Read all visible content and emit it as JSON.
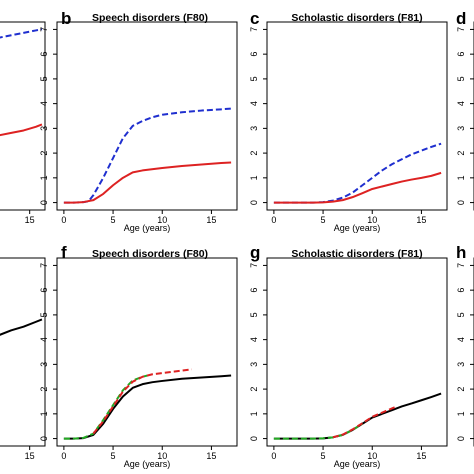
{
  "figure": {
    "panels": [
      {
        "id": "a-partial",
        "letter": "",
        "title": ""
      },
      {
        "id": "b",
        "letter": "b",
        "title": "Speech disorders (F80)"
      },
      {
        "id": "c",
        "letter": "c",
        "title": "Scholastic disorders (F81)"
      },
      {
        "id": "d",
        "letter": "d",
        "title": ""
      },
      {
        "id": "e-partial",
        "letter": "",
        "title": ""
      },
      {
        "id": "f",
        "letter": "f",
        "title": "Speech disorders (F80)"
      },
      {
        "id": "g",
        "letter": "g",
        "title": "Scholastic disorders (F81)"
      },
      {
        "id": "h",
        "letter": "h",
        "title": ""
      }
    ]
  },
  "chart_data": [
    {
      "panel": "a-partial",
      "type": "line",
      "title": "",
      "xlabel": "",
      "ylabel": "",
      "xlim": [
        8.2,
        17.5
      ],
      "ylim": [
        -0.3,
        7.5
      ],
      "xticks": [
        15
      ],
      "yticks": [],
      "series": [
        {
          "color": "#1f2fcf",
          "style": "dashed",
          "x": [
            8.2,
            10,
            12,
            14,
            16,
            17
          ],
          "y": [
            6.75,
            6.85,
            6.95,
            7.05,
            7.15,
            7.2
          ]
        },
        {
          "color": "#dd2222",
          "style": "solid",
          "x": [
            8.2,
            10,
            12,
            14,
            16,
            17
          ],
          "y": [
            2.7,
            2.8,
            2.9,
            3.0,
            3.15,
            3.25
          ]
        }
      ]
    },
    {
      "panel": "b",
      "type": "line",
      "title": "Speech disorders (F80)",
      "xlabel": "Age (years)",
      "ylabel": "",
      "xlim": [
        -0.7,
        17.6
      ],
      "ylim": [
        -0.3,
        7.3
      ],
      "xticks": [
        0,
        5,
        10,
        15
      ],
      "yticks": [
        0,
        1,
        2,
        3,
        4,
        5,
        6,
        7
      ],
      "series": [
        {
          "color": "#1f2fcf",
          "style": "dashed",
          "x": [
            0,
            1,
            2,
            2.5,
            3,
            4,
            5,
            6,
            7,
            8,
            9,
            10,
            12,
            14,
            16,
            17
          ],
          "y": [
            0,
            0,
            0.02,
            0.05,
            0.3,
            1.0,
            1.8,
            2.6,
            3.1,
            3.3,
            3.45,
            3.55,
            3.65,
            3.72,
            3.77,
            3.8
          ]
        },
        {
          "color": "#dd2222",
          "style": "solid",
          "x": [
            0,
            1,
            2,
            3,
            4,
            5,
            6,
            7,
            8,
            10,
            12,
            14,
            16,
            17
          ],
          "y": [
            0,
            0,
            0.02,
            0.1,
            0.35,
            0.7,
            1.0,
            1.22,
            1.3,
            1.4,
            1.48,
            1.54,
            1.6,
            1.62
          ]
        }
      ]
    },
    {
      "panel": "c",
      "type": "line",
      "title": "Scholastic disorders (F81)",
      "xlabel": "Age (years)",
      "ylabel": "",
      "xlim": [
        -0.7,
        17.6
      ],
      "ylim": [
        -0.3,
        7.3
      ],
      "xticks": [
        0,
        5,
        10,
        15
      ],
      "yticks": [
        0,
        1,
        2,
        3,
        4,
        5,
        6,
        7
      ],
      "series": [
        {
          "color": "#1f2fcf",
          "style": "dashed",
          "x": [
            0,
            2,
            4,
            5,
            6,
            7,
            8,
            9,
            10,
            11,
            12,
            13,
            14,
            15,
            16,
            17
          ],
          "y": [
            0,
            0,
            0,
            0.02,
            0.08,
            0.2,
            0.4,
            0.7,
            1.0,
            1.3,
            1.55,
            1.75,
            1.95,
            2.1,
            2.25,
            2.38
          ]
        },
        {
          "color": "#dd2222",
          "style": "solid",
          "x": [
            0,
            2,
            4,
            5,
            6,
            7,
            8,
            9,
            10,
            11,
            12,
            13,
            14,
            15,
            16,
            17
          ],
          "y": [
            0,
            0,
            0,
            0.01,
            0.04,
            0.1,
            0.22,
            0.38,
            0.55,
            0.65,
            0.75,
            0.85,
            0.93,
            1.0,
            1.08,
            1.2
          ]
        }
      ]
    },
    {
      "panel": "d",
      "type": "line",
      "title": "",
      "xlabel": "",
      "ylabel": "",
      "xlim": [
        -0.7,
        17.6
      ],
      "ylim": [
        -0.3,
        7.3
      ],
      "xticks": [],
      "yticks": [
        0,
        1,
        2,
        3,
        4,
        5,
        6,
        7
      ],
      "series": [
        {
          "color": "#1f2fcf",
          "style": "dashed",
          "x": [
            0,
            0.3
          ],
          "y": [
            0,
            0.05
          ]
        }
      ]
    },
    {
      "panel": "e-partial",
      "type": "line",
      "title": "",
      "xlabel": "",
      "ylabel": "",
      "xlim": [
        8.2,
        17.5
      ],
      "ylim": [
        -0.3,
        7.5
      ],
      "xticks": [
        15
      ],
      "yticks": [],
      "series": [
        {
          "color": "#000000",
          "style": "solid",
          "x": [
            8.2,
            10,
            12,
            14,
            16,
            17
          ],
          "y": [
            4.15,
            4.3,
            4.5,
            4.65,
            4.85,
            4.95
          ]
        }
      ]
    },
    {
      "panel": "f",
      "type": "line",
      "title": "Speech disorders (F80)",
      "xlabel": "Age (years)",
      "ylabel": "",
      "xlim": [
        -0.7,
        17.6
      ],
      "ylim": [
        -0.3,
        7.3
      ],
      "xticks": [
        0,
        5,
        10,
        15
      ],
      "yticks": [
        0,
        1,
        2,
        3,
        4,
        5,
        6,
        7
      ],
      "series": [
        {
          "color": "#000000",
          "style": "solid",
          "x": [
            0,
            1,
            2,
            3,
            4,
            5,
            6,
            7,
            8,
            9,
            10,
            12,
            14,
            16,
            17
          ],
          "y": [
            0,
            0,
            0.02,
            0.15,
            0.6,
            1.2,
            1.7,
            2.05,
            2.2,
            2.28,
            2.33,
            2.42,
            2.47,
            2.52,
            2.55
          ]
        },
        {
          "color": "#22aa22",
          "style": "dashed",
          "x": [
            0,
            1,
            2,
            3,
            4,
            5,
            6,
            7,
            8,
            8.5
          ],
          "y": [
            0,
            0,
            0.03,
            0.2,
            0.75,
            1.35,
            1.95,
            2.35,
            2.5,
            2.55
          ]
        },
        {
          "color": "#dd2222",
          "style": "dashed",
          "x": [
            3,
            4,
            5,
            6,
            7,
            8,
            9,
            10,
            11,
            12,
            13
          ],
          "y": [
            0.2,
            0.7,
            1.3,
            1.9,
            2.3,
            2.5,
            2.6,
            2.65,
            2.7,
            2.75,
            2.8
          ]
        }
      ]
    },
    {
      "panel": "g",
      "type": "line",
      "title": "Scholastic disorders (F81)",
      "xlabel": "Age (years)",
      "ylabel": "",
      "xlim": [
        -0.7,
        17.6
      ],
      "ylim": [
        -0.3,
        7.3
      ],
      "xticks": [
        0,
        5,
        10,
        15
      ],
      "yticks": [
        0,
        1,
        2,
        3,
        4,
        5,
        6,
        7
      ],
      "series": [
        {
          "color": "#000000",
          "style": "solid",
          "x": [
            0,
            2,
            4,
            5,
            6,
            7,
            8,
            9,
            10,
            11,
            12,
            13,
            14,
            15,
            16,
            17
          ],
          "y": [
            0,
            0,
            0,
            0.01,
            0.05,
            0.15,
            0.35,
            0.6,
            0.85,
            1.0,
            1.15,
            1.3,
            1.42,
            1.55,
            1.68,
            1.82
          ]
        },
        {
          "color": "#22aa22",
          "style": "dashed",
          "x": [
            0,
            2,
            4,
            5,
            6,
            7,
            8,
            9
          ],
          "y": [
            0,
            0,
            0,
            0.01,
            0.05,
            0.15,
            0.35,
            0.6
          ]
        },
        {
          "color": "#dd2222",
          "style": "dashed",
          "x": [
            6,
            7,
            8,
            9,
            10,
            11,
            12,
            12.5
          ],
          "y": [
            0.05,
            0.16,
            0.37,
            0.62,
            0.88,
            1.05,
            1.22,
            1.3
          ]
        }
      ]
    },
    {
      "panel": "h",
      "type": "line",
      "title": "",
      "xlabel": "",
      "ylabel": "",
      "xlim": [
        -0.7,
        17.6
      ],
      "ylim": [
        -0.3,
        7.3
      ],
      "xticks": [],
      "yticks": [
        0,
        1,
        2,
        3,
        4,
        5,
        6,
        7
      ],
      "series": [
        {
          "color": "#dd2222",
          "style": "dashed",
          "x": [
            0,
            0.3
          ],
          "y": [
            0,
            0.02
          ]
        }
      ]
    }
  ]
}
